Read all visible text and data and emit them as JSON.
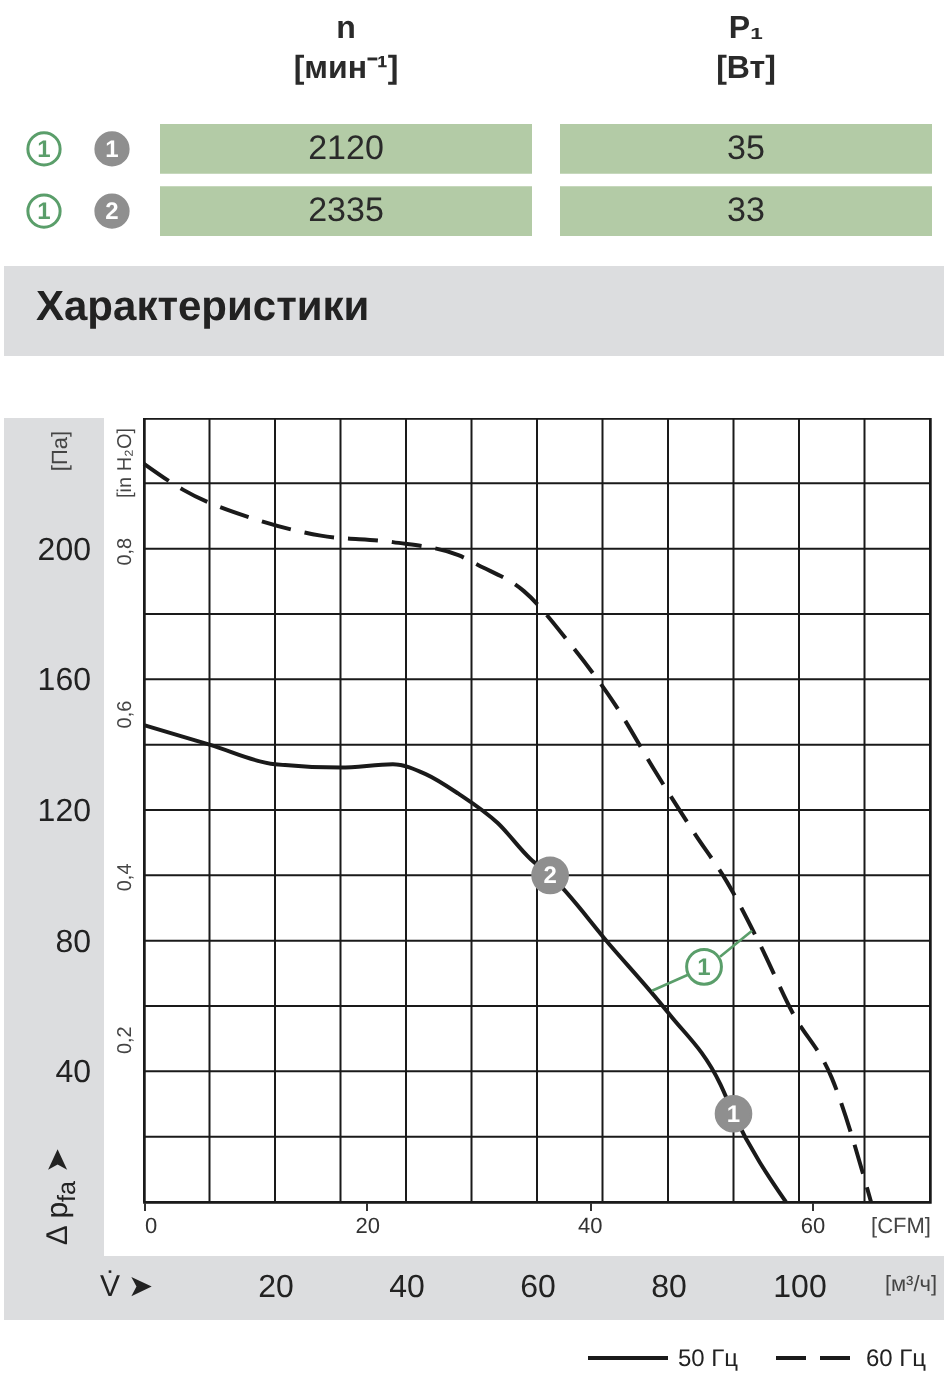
{
  "chart_data": [
    {
      "type": "other",
      "categories": [
        "n [мин⁻¹]",
        "P₁ [Вт]"
      ],
      "data_labels": true,
      "series": [
        {
          "name": "1 1",
          "color": "#b3cba6",
          "values": [
            2120,
            35
          ]
        },
        {
          "name": "1 2",
          "color": "#b3cba6",
          "values": [
            2335,
            33
          ]
        }
      ]
    },
    {
      "type": "line",
      "title": "Характеристики",
      "xlabel": "[м³/ч]",
      "x2label": "[CFM]",
      "ylabel": "[Па]",
      "y2label": "[in H₂O]",
      "xlim": [
        0,
        120
      ],
      "xticks": [
        {
          "value": 0,
          "label": null
        },
        {
          "value": 10,
          "label": null
        },
        20,
        {
          "value": 30,
          "label": null
        },
        40,
        {
          "value": 50,
          "label": null
        },
        60,
        {
          "value": 70,
          "label": null
        },
        80,
        {
          "value": 90,
          "label": null
        },
        100,
        {
          "value": 110,
          "label": null
        },
        {
          "value": 120,
          "label": null
        }
      ],
      "x2lim": [
        0,
        70.6
      ],
      "x2ticks": [
        0,
        20,
        40,
        60
      ],
      "ylim": [
        0,
        240
      ],
      "yticks": [
        {
          "value": 0,
          "label": null
        },
        {
          "value": 20,
          "label": null
        },
        40,
        {
          "value": 60,
          "label": null
        },
        80,
        {
          "value": 100,
          "label": null
        },
        120,
        {
          "value": 140,
          "label": null
        },
        160,
        {
          "value": 180,
          "label": null
        },
        200,
        {
          "value": 220,
          "label": null
        },
        {
          "value": 240,
          "label": null
        }
      ],
      "y2lim": [
        0,
        0.963
      ],
      "y2ticks": [
        {
          "value": 0.2,
          "label": "0,2"
        },
        {
          "value": 0.4,
          "label": "0,4"
        },
        {
          "value": 0.6,
          "label": "0,6"
        },
        {
          "value": 0.8,
          "label": "0,8"
        }
      ],
      "grid": true,
      "legend": "bottom right",
      "series": [
        {
          "name": "50 Гц",
          "color": "#1a1a1a",
          "line_style": "solid",
          "x": [
            0,
            10,
            20,
            30,
            38,
            43,
            48,
            54,
            59,
            62,
            71,
            80,
            88,
            90,
            98
          ],
          "values": [
            146,
            140,
            134,
            133,
            134,
            131,
            125,
            116,
            105,
            100,
            79,
            58,
            36,
            27,
            0
          ]
        },
        {
          "name": "60 Гц",
          "color": "#1a1a1a",
          "line_style": "dashed",
          "x": [
            0,
            6,
            17,
            27,
            38,
            48,
            51,
            58,
            65,
            72,
            78,
            84,
            89,
            94,
            99,
            105,
            111
          ],
          "values": [
            226,
            218,
            209,
            204,
            202,
            198,
            195,
            187,
            171,
            152,
            132,
            113,
            98,
            79,
            58,
            38,
            0
          ]
        }
      ],
      "annotations": [
        {
          "text": "1",
          "x": 90,
          "y": 27
        },
        {
          "text": "2",
          "x": 62,
          "y": 100
        },
        {
          "text": "1",
          "x": 85.5,
          "y": 72
        },
        "V̇ ➤",
        "Δ p$_{fa}$ ➤"
      ]
    }
  ]
}
